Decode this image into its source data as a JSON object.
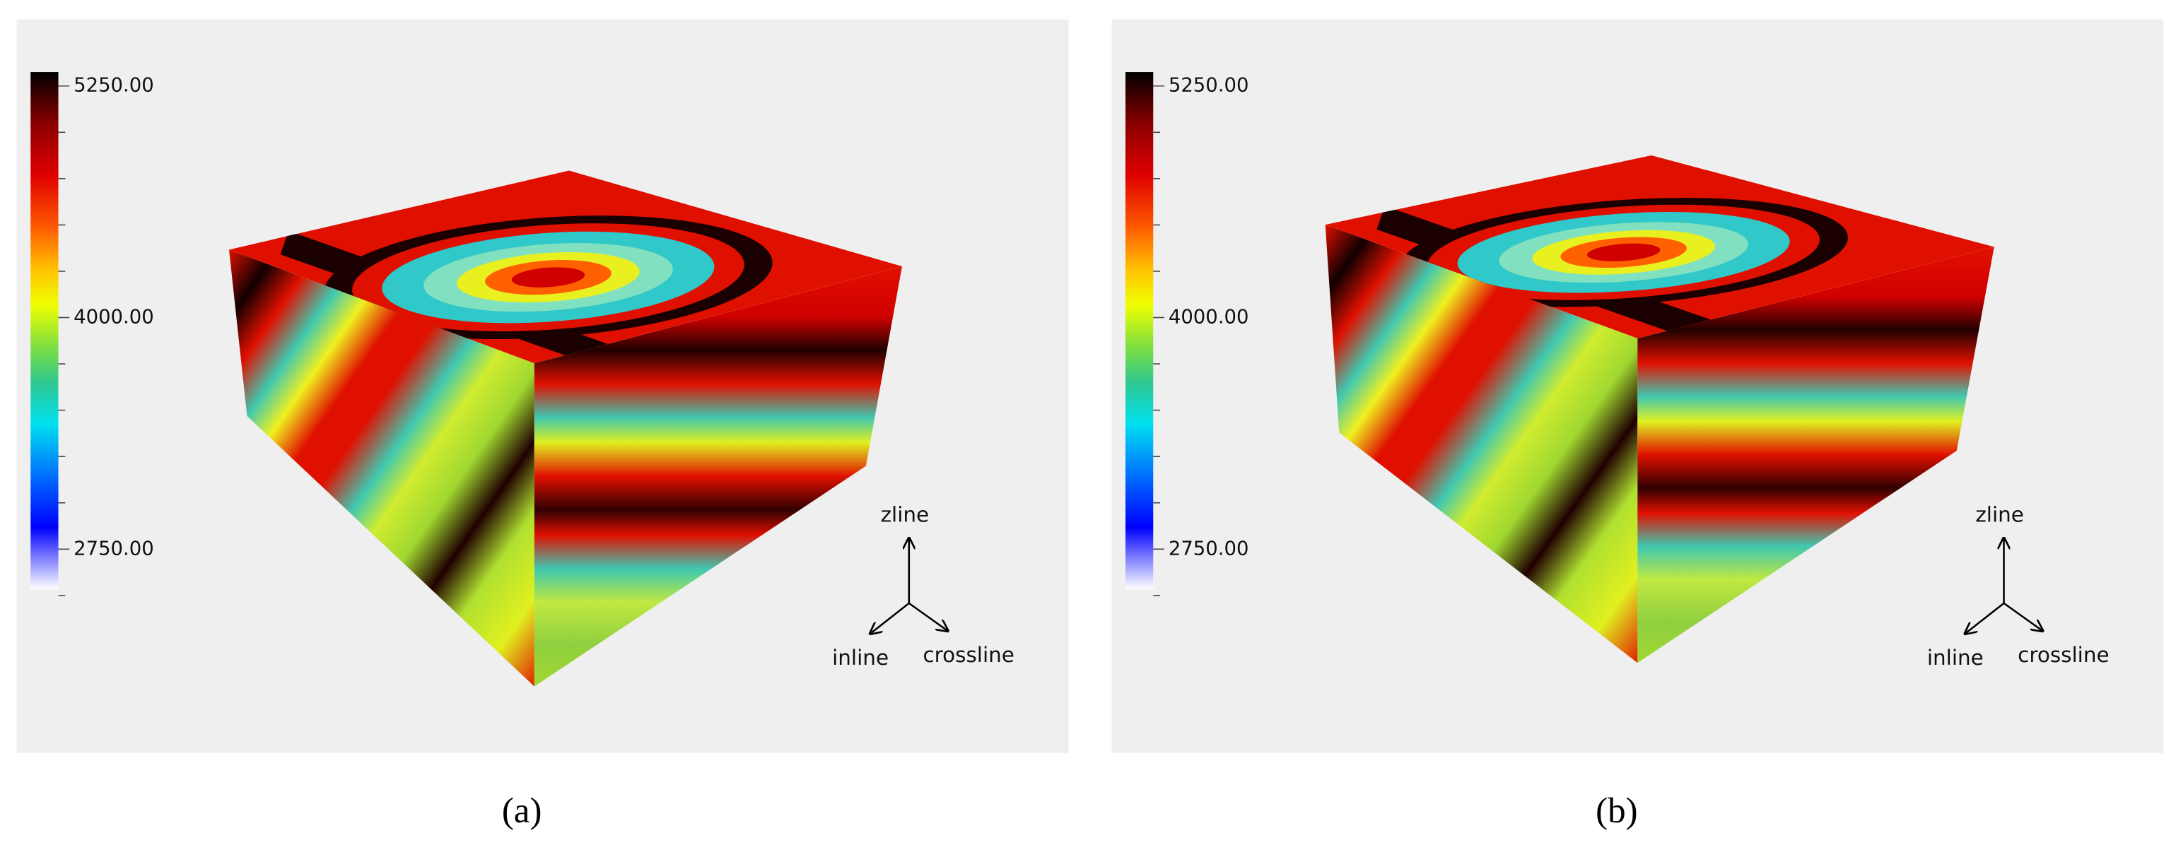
{
  "panels": [
    {
      "caption": "(a)",
      "colorbar_ticks": [
        "5250.00",
        "4000.00",
        "2750.00"
      ],
      "axes": {
        "up": "zline",
        "left": "inline",
        "right": "crossline"
      }
    },
    {
      "caption": "(b)",
      "colorbar_ticks": [
        "5250.00",
        "4000.00",
        "2750.00"
      ],
      "axes": {
        "up": "zline",
        "left": "inline",
        "right": "crossline"
      }
    }
  ]
}
